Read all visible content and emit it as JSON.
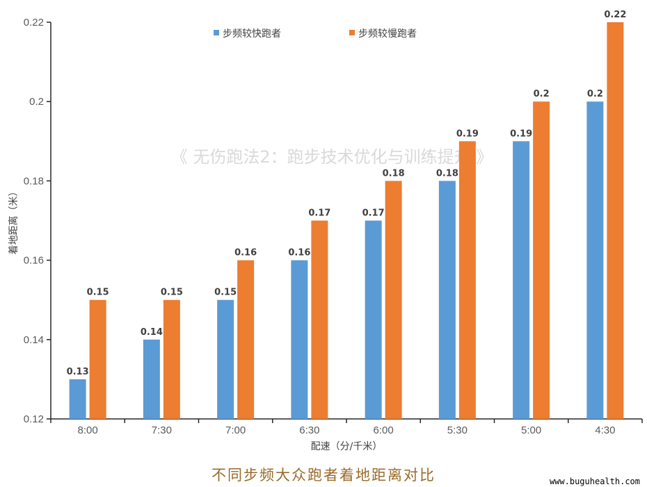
{
  "chart_data": {
    "type": "bar",
    "categories": [
      "8:00",
      "7:30",
      "7:00",
      "6:30",
      "6:00",
      "5:30",
      "5:00",
      "4:30"
    ],
    "series": [
      {
        "name": "步频较快跑者",
        "color": "#5b9bd5",
        "values": [
          0.13,
          0.14,
          0.15,
          0.16,
          0.17,
          0.18,
          0.19,
          0.2
        ]
      },
      {
        "name": "步频较慢跑者",
        "color": "#ed7d31",
        "values": [
          0.15,
          0.15,
          0.16,
          0.17,
          0.18,
          0.19,
          0.2,
          0.22
        ]
      }
    ],
    "xlabel": "配速（分/千米）",
    "ylabel": "着地距离（米）",
    "ylim": [
      0.12,
      0.22
    ],
    "yticks": [
      "0.12",
      "0.14",
      "0.16",
      "0.18",
      "0.2",
      "0.22"
    ],
    "grid": false,
    "legend": "top-center"
  },
  "watermark": "《 无伤跑法2：跑步技术优化与训练提升 》",
  "caption": "不同步频大众跑者着地距离对比",
  "site": "www.buguhealth.com"
}
